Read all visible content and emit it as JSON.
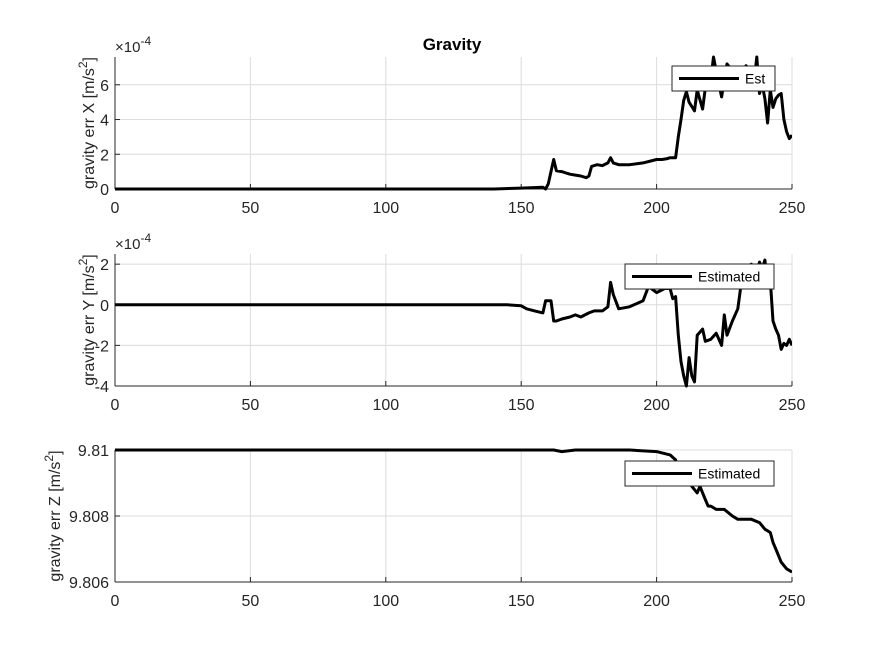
{
  "figure": {
    "title": "Gravity"
  },
  "chart_data": [
    {
      "type": "line",
      "title": "Gravity",
      "xlabel": "",
      "ylabel": "gravity err X [m/s²]",
      "ylabel_parts": {
        "main": "gravity err X [m/s",
        "sup": "2",
        "end": "]"
      },
      "exponent_label": {
        "base": "×10",
        "power": "-4"
      },
      "xlim": [
        0,
        250
      ],
      "ylim": [
        0,
        7.6
      ],
      "xticks": [
        0,
        50,
        100,
        150,
        200,
        250
      ],
      "yticks": [
        0,
        2,
        4,
        6
      ],
      "grid": true,
      "legend": {
        "position": "top-right",
        "entries": [
          "Est"
        ]
      },
      "series": [
        {
          "name": "Est",
          "color": "#000000",
          "x": [
            0,
            140,
            150,
            158,
            159,
            160,
            161,
            162,
            163,
            165,
            166,
            168,
            170,
            172,
            174,
            175,
            176,
            178,
            180,
            182,
            183,
            184,
            186,
            190,
            195,
            200,
            202,
            204,
            205,
            207,
            208,
            209,
            210,
            211,
            212,
            214,
            215,
            217,
            218,
            220,
            221,
            222,
            224,
            226,
            227,
            229,
            230,
            233,
            235,
            236,
            237,
            238,
            239,
            240,
            241,
            242,
            243,
            244,
            245,
            246,
            247,
            248,
            249,
            250
          ],
          "y": [
            0,
            0,
            0.05,
            0.1,
            0,
            0.3,
            1.0,
            1.7,
            1.05,
            1.0,
            0.95,
            0.85,
            0.8,
            0.75,
            0.65,
            0.75,
            1.3,
            1.4,
            1.35,
            1.5,
            1.8,
            1.5,
            1.4,
            1.4,
            1.5,
            1.7,
            1.7,
            1.75,
            1.8,
            1.8,
            3.0,
            4.0,
            5.1,
            5.6,
            5.0,
            4.5,
            5.7,
            4.6,
            5.8,
            6.3,
            7.6,
            6.8,
            5.3,
            7.2,
            7.0,
            6.8,
            6.2,
            7.1,
            6.8,
            6.2,
            7.6,
            5.5,
            6.0,
            5.2,
            3.8,
            5.7,
            4.7,
            5.2,
            5.4,
            5.5,
            4.0,
            3.3,
            2.9,
            3.1
          ]
        }
      ]
    },
    {
      "type": "line",
      "title": "",
      "xlabel": "",
      "ylabel": "gravity err Y [m/s²]",
      "ylabel_parts": {
        "main": "gravity err Y [m/s",
        "sup": "2",
        "end": "]"
      },
      "exponent_label": {
        "base": "×10",
        "power": "-4"
      },
      "xlim": [
        0,
        250
      ],
      "ylim": [
        -4,
        2.5
      ],
      "xticks": [
        0,
        50,
        100,
        150,
        200,
        250
      ],
      "yticks": [
        -4,
        -2,
        0,
        2
      ],
      "grid": true,
      "legend": {
        "position": "top-right",
        "entries": [
          "Estimated"
        ]
      },
      "series": [
        {
          "name": "Estimated",
          "color": "#000000",
          "x": [
            0,
            145,
            150,
            152,
            155,
            158,
            159,
            161,
            162,
            163,
            165,
            168,
            170,
            172,
            175,
            177,
            180,
            182,
            183,
            184,
            186,
            190,
            195,
            197,
            200,
            203,
            205,
            206,
            207,
            208,
            209,
            210,
            211,
            212,
            213,
            214,
            215,
            217,
            218,
            220,
            222,
            224,
            225,
            226,
            228,
            230,
            232,
            235,
            237,
            238,
            239,
            240,
            241,
            242,
            243,
            244,
            245,
            246,
            247,
            248,
            249,
            250
          ],
          "y": [
            0,
            0,
            -0.05,
            -0.2,
            -0.3,
            -0.4,
            0.2,
            0.2,
            -0.8,
            -0.8,
            -0.7,
            -0.6,
            -0.5,
            -0.6,
            -0.4,
            -0.3,
            -0.3,
            -0.1,
            1.1,
            0.5,
            -0.2,
            -0.1,
            0.2,
            0.9,
            0.6,
            0.8,
            0.8,
            0.3,
            0.4,
            -1.5,
            -2.8,
            -3.5,
            -4.0,
            -2.6,
            -3.5,
            -3.8,
            -1.5,
            -1.2,
            -1.8,
            -1.7,
            -1.4,
            -2.0,
            -0.5,
            -1.5,
            -0.8,
            -0.2,
            1.8,
            2.0,
            1.6,
            2.1,
            1.8,
            2.2,
            1.0,
            1.2,
            -0.8,
            -1.2,
            -1.5,
            -2.2,
            -1.9,
            -2.0,
            -1.7,
            -2.0
          ]
        }
      ]
    },
    {
      "type": "line",
      "title": "",
      "xlabel": "",
      "ylabel": "gravity err Z [m/s²]",
      "ylabel_parts": {
        "main": "gravity err Z [m/s",
        "sup": "2",
        "end": "]"
      },
      "xlim": [
        0,
        250
      ],
      "ylim": [
        9.806,
        9.81
      ],
      "xticks": [
        0,
        50,
        100,
        150,
        200,
        250
      ],
      "yticks": [
        9.806,
        9.808,
        9.81
      ],
      "ytick_labels": [
        "9.806",
        "9.808",
        "9.81"
      ],
      "grid": true,
      "legend": {
        "position": "top-right",
        "entries": [
          "Estimated"
        ]
      },
      "series": [
        {
          "name": "Estimated",
          "color": "#000000",
          "x": [
            0,
            140,
            150,
            155,
            158,
            160,
            162,
            165,
            170,
            180,
            190,
            200,
            205,
            207,
            208,
            210,
            212,
            213,
            215,
            216,
            218,
            219,
            220,
            222,
            225,
            228,
            230,
            232,
            235,
            238,
            240,
            242,
            243,
            244,
            245,
            246,
            247,
            248,
            249,
            250
          ],
          "y": [
            9.81,
            9.81,
            9.81,
            9.81,
            9.81,
            9.81,
            9.81,
            9.80995,
            9.81,
            9.81,
            9.81,
            9.80995,
            9.80985,
            9.8097,
            9.8094,
            9.8092,
            9.8092,
            9.8089,
            9.8087,
            9.8089,
            9.8085,
            9.8083,
            9.8083,
            9.8082,
            9.8082,
            9.808,
            9.8079,
            9.8079,
            9.8079,
            9.8078,
            9.8076,
            9.8075,
            9.8072,
            9.807,
            9.8068,
            9.8066,
            9.8065,
            9.8064,
            9.80635,
            9.8063
          ]
        }
      ]
    }
  ]
}
